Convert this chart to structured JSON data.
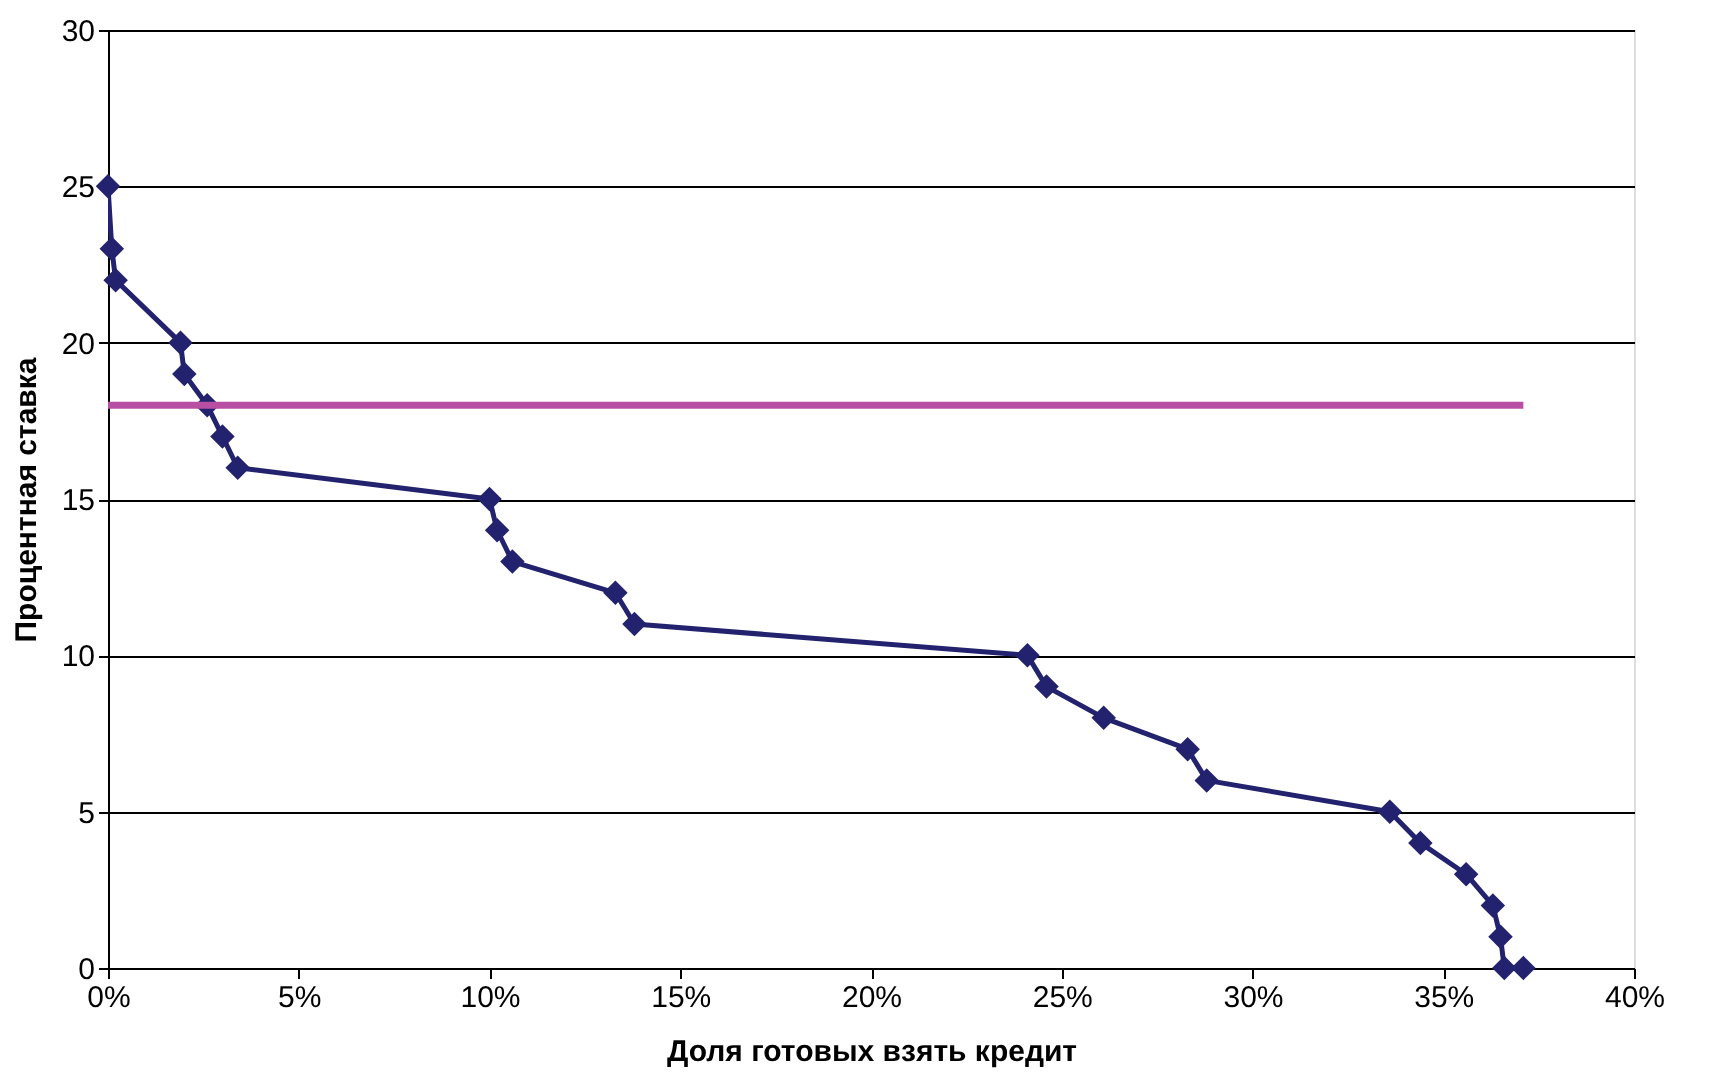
{
  "chart_data": {
    "type": "line",
    "xlabel": "Доля готовых взять кредит",
    "ylabel": "Процентная ставка",
    "xlim": [
      0,
      40
    ],
    "ylim": [
      0,
      30
    ],
    "xticks": [
      {
        "value": 0,
        "label": "0%"
      },
      {
        "value": 5,
        "label": "5%"
      },
      {
        "value": 10,
        "label": "10%"
      },
      {
        "value": 15,
        "label": "15%"
      },
      {
        "value": 20,
        "label": "20%"
      },
      {
        "value": 25,
        "label": "25%"
      },
      {
        "value": 30,
        "label": "30%"
      },
      {
        "value": 35,
        "label": "35%"
      },
      {
        "value": 40,
        "label": "40%"
      }
    ],
    "yticks": [
      0,
      5,
      10,
      15,
      20,
      25,
      30
    ],
    "x": [
      0.0,
      0.1,
      0.2,
      1.9,
      2.0,
      2.6,
      3.0,
      3.4,
      10.0,
      10.2,
      10.6,
      13.3,
      13.8,
      24.1,
      24.6,
      26.1,
      28.3,
      28.8,
      33.6,
      34.4,
      35.6,
      36.3,
      36.5,
      36.6,
      37.1
    ],
    "series": [
      {
        "color": "#22226e",
        "values": [
          25,
          23,
          22,
          20,
          19,
          18,
          17,
          16,
          15,
          14,
          13,
          12,
          11,
          10,
          9,
          8,
          7,
          6,
          5,
          4,
          3,
          2,
          1,
          0,
          0
        ]
      }
    ],
    "ref_lines": [
      {
        "axis": "y",
        "value": 18,
        "color": "#b94fa3"
      }
    ],
    "grid": "y",
    "marker": "diamond",
    "line_style": "solid"
  }
}
